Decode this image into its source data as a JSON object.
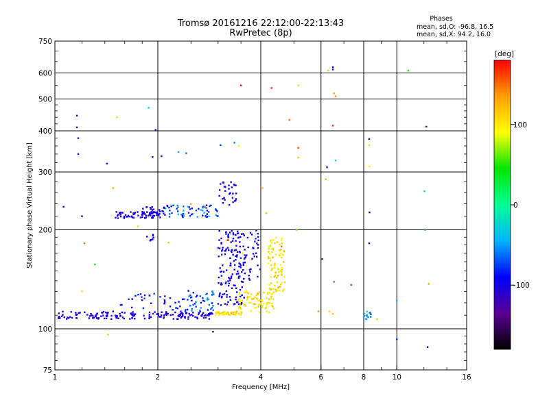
{
  "chart_data": {
    "type": "scatter",
    "title": "Tromsø 20161216 22:12:00-22:13:43",
    "subtitle": "RwPretec (8p)",
    "xlabel": "Frequency [MHz]",
    "ylabel": "Stationary phase Virtual Height [km]",
    "xscale": "log2",
    "yscale": "log",
    "xlim": [
      1,
      16
    ],
    "ylim": [
      75,
      750
    ],
    "x_ticks": [
      {
        "v": 1,
        "label": "1"
      },
      {
        "v": 2,
        "label": "2"
      },
      {
        "v": 4,
        "label": "4"
      },
      {
        "v": 6,
        "label": "6"
      },
      {
        "v": 8,
        "label": "8"
      },
      {
        "v": 10,
        "label": "10"
      },
      {
        "v": 16,
        "label": "16"
      }
    ],
    "x_grid": [
      2,
      4,
      6,
      8,
      10
    ],
    "y_ticks": [
      {
        "v": 75,
        "label": "75"
      },
      {
        "v": 100,
        "label": "100"
      },
      {
        "v": 200,
        "label": "200"
      },
      {
        "v": 300,
        "label": "300"
      },
      {
        "v": 400,
        "label": "400"
      },
      {
        "v": 500,
        "label": "500"
      },
      {
        "v": 600,
        "label": "600"
      },
      {
        "v": 750,
        "label": "750"
      }
    ],
    "y_grid": [
      100,
      200,
      300,
      400,
      500,
      600
    ],
    "grid": true,
    "phases_box": {
      "title": "Phases",
      "line_o": "mean, sd,O: -96.8, 16.5",
      "line_x": "mean, sd,X:  94.2, 16.0"
    },
    "colorbar": {
      "label": "[deg]",
      "range": [
        -180,
        180
      ],
      "ticks": [
        {
          "v": 100,
          "label": "100"
        },
        {
          "v": 0,
          "label": "0"
        },
        {
          "v": -100,
          "label": "-100"
        }
      ],
      "stops": [
        "#000000",
        "#5a0096",
        "#0000ff",
        "#00b4ff",
        "#00ff96",
        "#00e600",
        "#ffff00",
        "#ffa000",
        "#ff0000"
      ]
    },
    "clusters": [
      {
        "x0": 1.02,
        "x1": 2.9,
        "y0": 107,
        "y1": 113,
        "n": 170,
        "phase": [
          -112,
          -96
        ]
      },
      {
        "x0": 1.55,
        "x1": 2.5,
        "y0": 114,
        "y1": 128,
        "n": 35,
        "phase": [
          -110,
          -70
        ]
      },
      {
        "x0": 2.4,
        "x1": 2.95,
        "y0": 113,
        "y1": 132,
        "n": 40,
        "phase": [
          -105,
          -45
        ]
      },
      {
        "x0": 2.95,
        "x1": 3.55,
        "y0": 110,
        "y1": 113,
        "n": 45,
        "phase": [
          90,
          125
        ]
      },
      {
        "x0": 3.4,
        "x1": 4.4,
        "y0": 112,
        "y1": 130,
        "n": 90,
        "phase": [
          80,
          125
        ]
      },
      {
        "x0": 4.2,
        "x1": 4.7,
        "y0": 130,
        "y1": 190,
        "n": 90,
        "phase": [
          80,
          125
        ]
      },
      {
        "x0": 3.0,
        "x1": 3.6,
        "y0": 118,
        "y1": 200,
        "n": 140,
        "phase": [
          -115,
          -85
        ]
      },
      {
        "x0": 3.4,
        "x1": 4.0,
        "y0": 140,
        "y1": 200,
        "n": 45,
        "phase": [
          -110,
          -80
        ]
      },
      {
        "x0": 1.5,
        "x1": 2.1,
        "y0": 217,
        "y1": 227,
        "n": 70,
        "phase": [
          -112,
          -95
        ]
      },
      {
        "x0": 1.8,
        "x1": 2.1,
        "y0": 224,
        "y1": 235,
        "n": 20,
        "phase": [
          -110,
          -95
        ]
      },
      {
        "x0": 2.1,
        "x1": 3.0,
        "y0": 218,
        "y1": 238,
        "n": 60,
        "phase": [
          -110,
          -40
        ]
      },
      {
        "x0": 3.0,
        "x1": 3.4,
        "y0": 238,
        "y1": 280,
        "n": 30,
        "phase": [
          -110,
          -90
        ]
      },
      {
        "x0": 1.85,
        "x1": 1.95,
        "y0": 180,
        "y1": 195,
        "n": 8,
        "phase": [
          -105,
          -90
        ]
      },
      {
        "x0": 8.0,
        "x1": 8.4,
        "y0": 104,
        "y1": 113,
        "n": 12,
        "phase": [
          -70,
          -20
        ]
      }
    ],
    "isolated_points": [
      [
        1.16,
        445,
        -100
      ],
      [
        1.16,
        410,
        -105
      ],
      [
        1.17,
        380,
        -100
      ],
      [
        1.17,
        340,
        -98
      ],
      [
        1.42,
        318,
        -100
      ],
      [
        1.52,
        440,
        110
      ],
      [
        1.88,
        470,
        -30
      ],
      [
        1.97,
        403,
        -110
      ],
      [
        1.93,
        333,
        -100
      ],
      [
        2.05,
        335,
        -95
      ],
      [
        2.3,
        345,
        -40
      ],
      [
        2.42,
        342,
        -60
      ],
      [
        3.05,
        362,
        -70
      ],
      [
        3.35,
        368,
        -60
      ],
      [
        3.5,
        550,
        180
      ],
      [
        4.3,
        540,
        170
      ],
      [
        4.85,
        432,
        150
      ],
      [
        5.15,
        550,
        110
      ],
      [
        5.15,
        332,
        120
      ],
      [
        5.15,
        355,
        160
      ],
      [
        6.3,
        610,
        120
      ],
      [
        6.5,
        625,
        -100
      ],
      [
        6.5,
        615,
        -95
      ],
      [
        6.55,
        520,
        130
      ],
      [
        6.62,
        510,
        140
      ],
      [
        6.5,
        415,
        170
      ],
      [
        6.25,
        310,
        -90
      ],
      [
        6.62,
        325,
        -20
      ],
      [
        8.3,
        378,
        -90
      ],
      [
        8.3,
        362,
        110
      ],
      [
        8.3,
        312,
        90
      ],
      [
        10.8,
        610,
        40
      ],
      [
        12.2,
        412,
        -140
      ],
      [
        12.05,
        262,
        -20
      ],
      [
        12.1,
        200,
        -55
      ],
      [
        8.32,
        226,
        -100
      ],
      [
        8.3,
        182,
        -100
      ],
      [
        10.0,
        122,
        -50
      ],
      [
        10.0,
        93,
        -80
      ],
      [
        12.3,
        88,
        -100
      ],
      [
        12.4,
        137,
        130
      ],
      [
        6.05,
        163,
        -140
      ],
      [
        6.55,
        139,
        160
      ],
      [
        7.35,
        136,
        170
      ],
      [
        8.75,
        107,
        110
      ],
      [
        5.9,
        113,
        140
      ],
      [
        6.35,
        113,
        110
      ],
      [
        6.5,
        111,
        120
      ],
      [
        1.43,
        96,
        120
      ],
      [
        1.22,
        182,
        150
      ],
      [
        1.31,
        157,
        40
      ],
      [
        1.48,
        268,
        130
      ],
      [
        1.06,
        235,
        -100
      ],
      [
        1.2,
        220,
        -100
      ],
      [
        2.5,
        240,
        130
      ],
      [
        4.05,
        268,
        120
      ],
      [
        2.9,
        98,
        -140
      ],
      [
        3.2,
        186,
        170
      ],
      [
        4.15,
        225,
        120
      ],
      [
        5.1,
        200,
        60
      ],
      [
        3.55,
        170,
        100
      ],
      [
        1.75,
        205,
        80
      ],
      [
        6.2,
        285,
        130
      ],
      [
        2.15,
        183,
        70
      ],
      [
        1.2,
        130,
        110
      ],
      [
        4.6,
        178,
        150
      ],
      [
        3.45,
        360,
        100
      ],
      [
        2.75,
        235,
        140
      ]
    ]
  }
}
